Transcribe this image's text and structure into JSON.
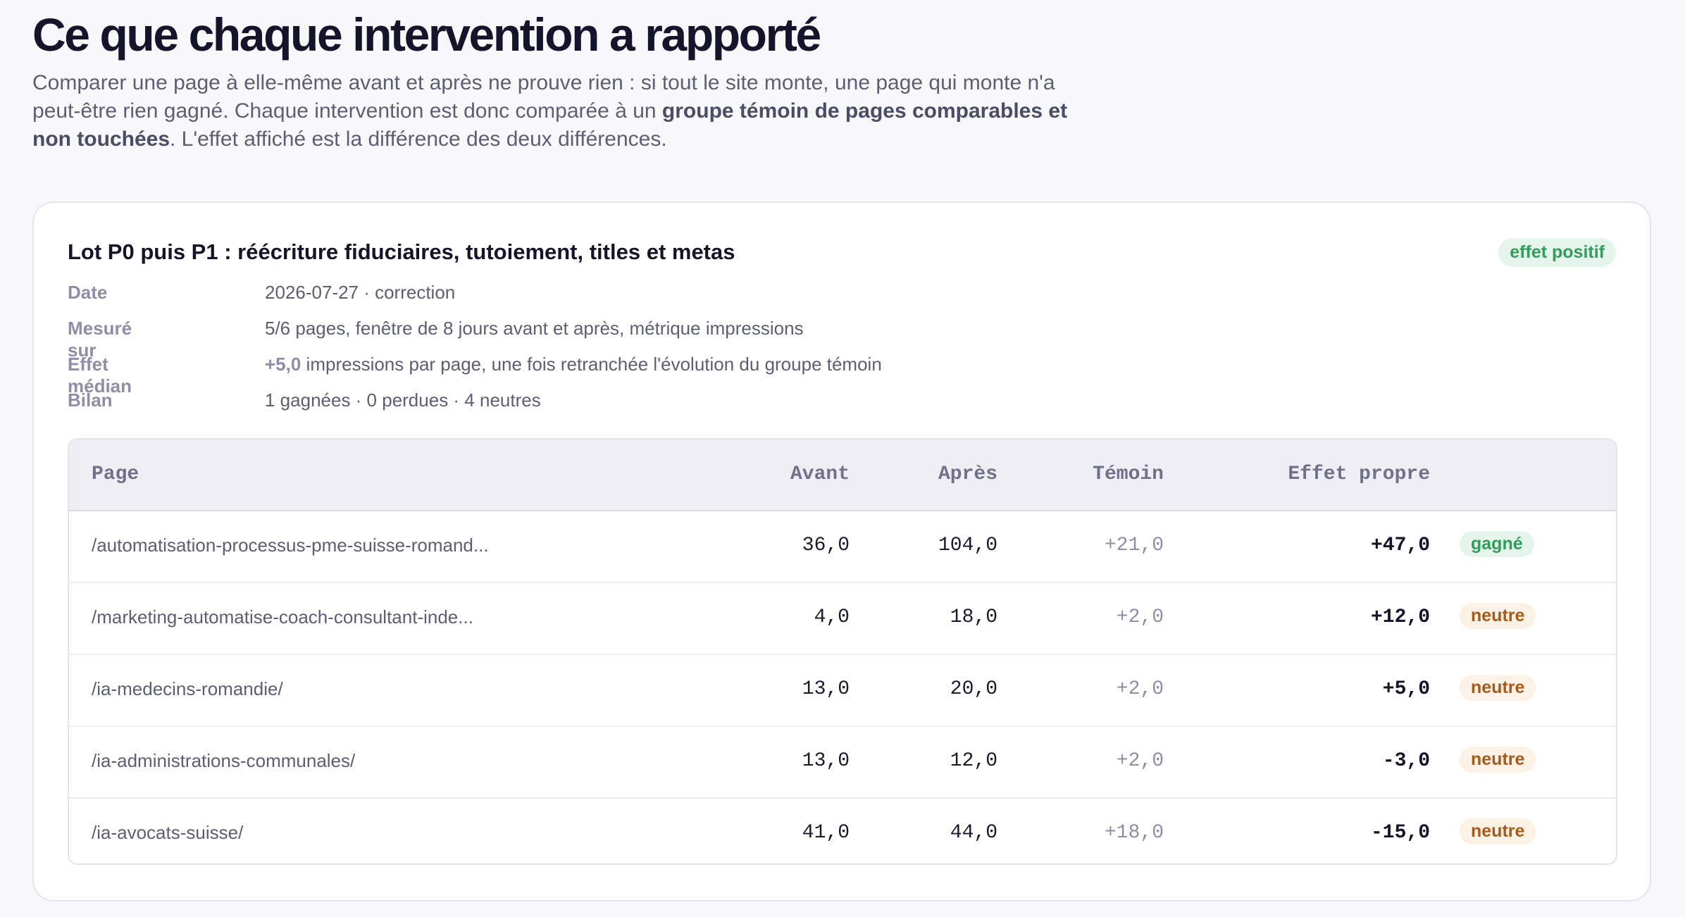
{
  "header": {
    "title": "Ce que chaque intervention a rapporté",
    "intro_part1": "Comparer une page à elle-même avant et après ne prouve rien : si tout le site monte, une page qui monte n'a peut-être rien gagné. Chaque intervention est donc comparée à un ",
    "intro_bold": "groupe témoin de pages comparables et non touchées",
    "intro_part2": ". L'effet affiché est la différence des deux différences."
  },
  "card": {
    "title": "Lot P0 puis P1 : réécriture fiduciaires, tutoiement, titles et metas",
    "badge": "effet positif",
    "meta": {
      "date_label": "Date",
      "date_value": "2026-07-27 · correction",
      "measured_label": "Mesuré sur",
      "measured_value": "5/6 pages, fenêtre de 8 jours avant et après, métrique impressions",
      "effect_label": "Effet médian",
      "effect_value_highlight": "+5,0",
      "effect_value_rest": " impressions par page, une fois retranchée l'évolution du groupe témoin",
      "summary_label": "Bilan",
      "summary_value": "1 gagnées · 0 perdues · 4 neutres"
    },
    "table": {
      "headers": {
        "page": "Page",
        "avant": "Avant",
        "apres": "Après",
        "temoin": "Témoin",
        "effet": "Effet propre"
      },
      "rows": [
        {
          "page": "/automatisation-processus-pme-suisse-romand...",
          "avant": "36,0",
          "apres": "104,0",
          "temoin": "+21,0",
          "effet": "+47,0",
          "status": "gagné",
          "status_kind": "gagne"
        },
        {
          "page": "/marketing-automatise-coach-consultant-inde...",
          "avant": "4,0",
          "apres": "18,0",
          "temoin": "+2,0",
          "effet": "+12,0",
          "status": "neutre",
          "status_kind": "neutre"
        },
        {
          "page": "/ia-medecins-romandie/",
          "avant": "13,0",
          "apres": "20,0",
          "temoin": "+2,0",
          "effet": "+5,0",
          "status": "neutre",
          "status_kind": "neutre"
        },
        {
          "page": "/ia-administrations-communales/",
          "avant": "13,0",
          "apres": "12,0",
          "temoin": "+2,0",
          "effet": "-3,0",
          "status": "neutre",
          "status_kind": "neutre"
        },
        {
          "page": "/ia-avocats-suisse/",
          "avant": "41,0",
          "apres": "44,0",
          "temoin": "+18,0",
          "effet": "-15,0",
          "status": "neutre",
          "status_kind": "neutre"
        }
      ]
    }
  },
  "colors": {
    "positive": "#2f9e5b",
    "neutral": "#a85a1a"
  }
}
